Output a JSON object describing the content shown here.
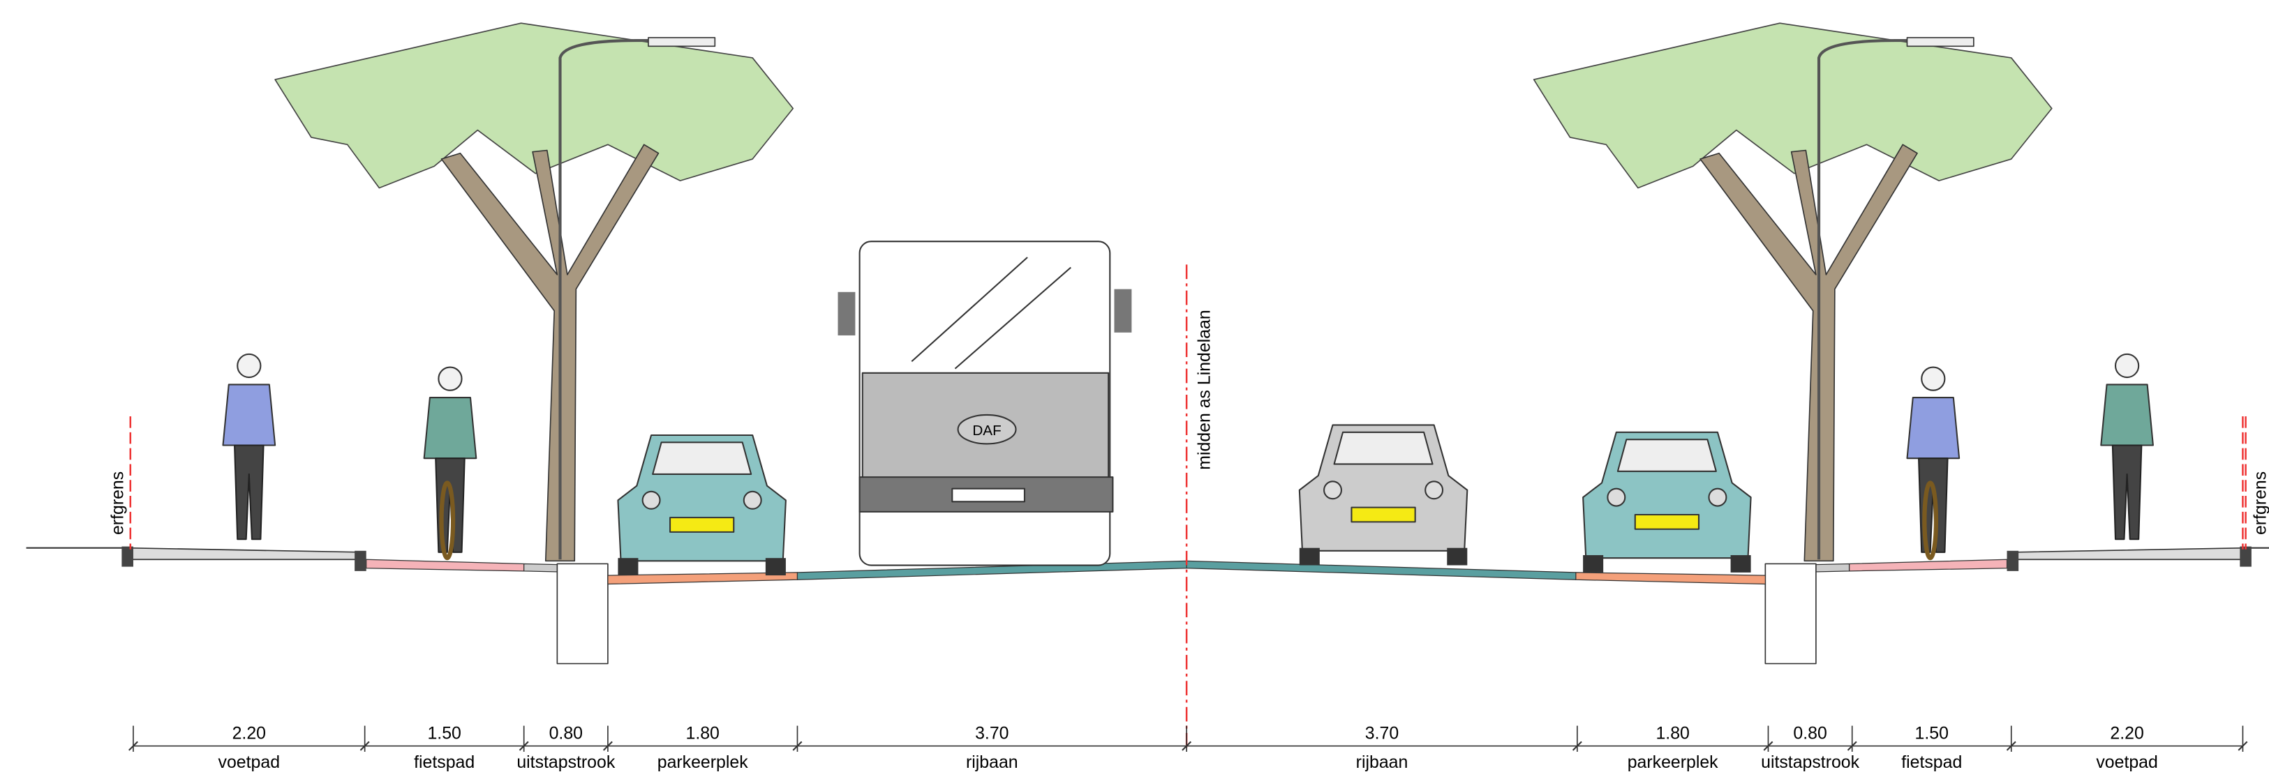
{
  "boundary_label_left": "erfgrens",
  "boundary_label_right": "erfgrens",
  "center_label": "midden as Lindelaan",
  "bus_badge": "DAF",
  "profile": [
    {
      "width": "2.20",
      "label": "voetpad"
    },
    {
      "width": "1.50",
      "label": "fietspad"
    },
    {
      "width": "0.80",
      "label": "uitstapstrook"
    },
    {
      "width": "1.80",
      "label": "parkeerplek"
    },
    {
      "width": "3.70",
      "label": "rijbaan"
    },
    {
      "width": "3.70",
      "label": "rijbaan"
    },
    {
      "width": "1.80",
      "label": "parkeerplek"
    },
    {
      "width": "0.80",
      "label": "uitstapstrook"
    },
    {
      "width": "1.50",
      "label": "fietspad"
    },
    {
      "width": "2.20",
      "label": "voetpad"
    }
  ]
}
